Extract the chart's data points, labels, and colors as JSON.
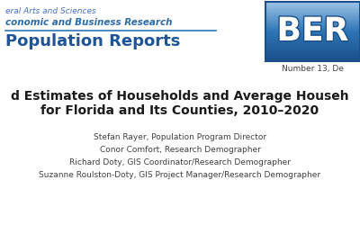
{
  "background_color": "#ffffff",
  "header_line1": "eral Arts and Sciences",
  "header_line2": "conomic and Business Research",
  "header_line3": "Population Reports",
  "header_line1_color": "#4472c4",
  "header_line2_color": "#2e6da4",
  "header_line3_color": "#1f5496",
  "divider_color": "#2e75b6",
  "number_text": "Number 13, De",
  "number_color": "#404040",
  "title_line1": "d Estimates of Households and Average Househ",
  "title_line2": "for Florida and Its Counties, 2010–2020",
  "title_color": "#1a1a1a",
  "authors": [
    "Stefan Rayer, Population Program Director",
    "Conor Comfort, Research Demographer",
    "Richard Doty, GIS Coordinator/Research Demographer",
    "Suzanne Roulston-Doty, GIS Project Manager/Research Demographer"
  ],
  "author_color": "#404040",
  "ber_color_dark": "#1a4f8a",
  "ber_color_mid": "#2e75b6",
  "ber_color_light": "#9dc3e6",
  "ber_border": "#1a4f8a"
}
